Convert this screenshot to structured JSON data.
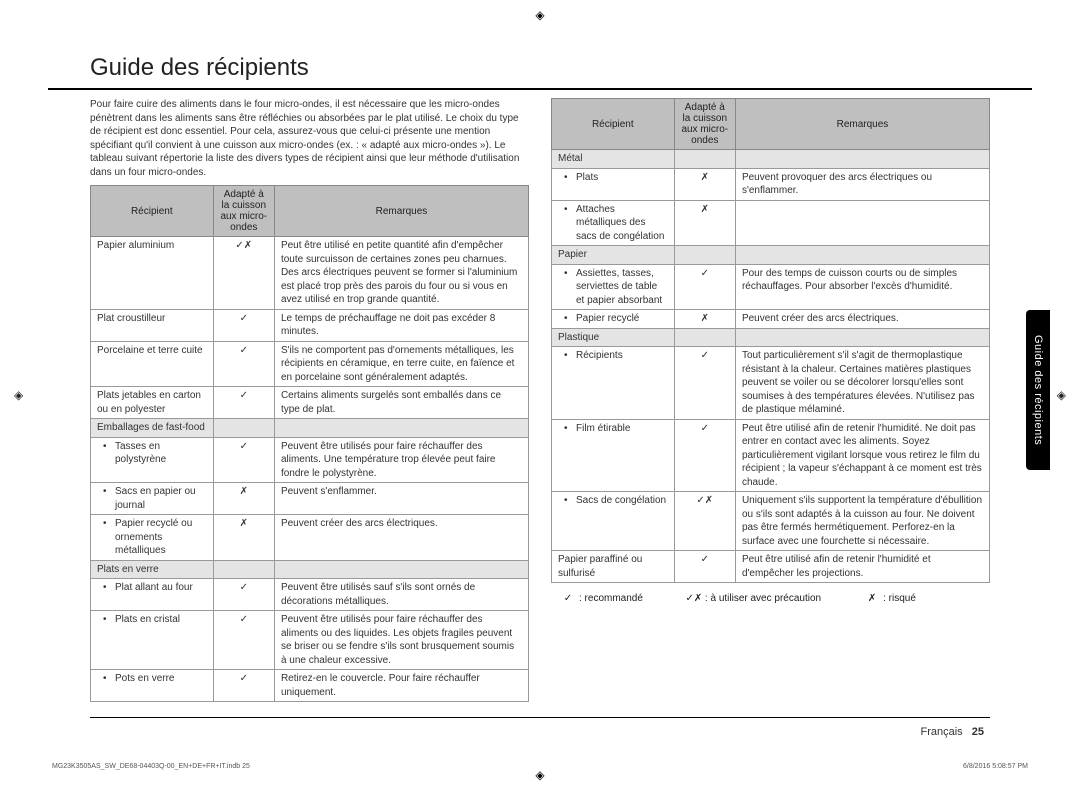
{
  "title": "Guide des récipients",
  "intro": "Pour faire cuire des aliments dans le four micro-ondes, il est nécessaire que les micro-ondes pénètrent dans les aliments sans être réfléchies ou absorbées par le plat utilisé. Le choix du type de récipient est donc essentiel. Pour cela, assurez-vous que celui-ci présente une mention spécifiant qu'il convient à une cuisson aux micro-ondes (ex. : « adapté aux micro-ondes »). Le tableau suivant répertorie la liste des divers types de récipient ainsi que leur méthode d'utilisation dans un four micro-ondes.",
  "headers": {
    "c1": "Récipient",
    "c2": "Adapté à la cuisson aux micro-ondes",
    "c3": "Remarques"
  },
  "left_rows": [
    {
      "type": "row",
      "c1": "Papier aluminium",
      "c2": "✓✗",
      "c3": "Peut être utilisé en petite quantité afin d'empêcher toute surcuisson de certaines zones peu charnues. Des arcs électriques peuvent se former si l'aluminium est placé trop près des parois du four ou si vous en avez utilisé en trop grande quantité."
    },
    {
      "type": "row",
      "c1": "Plat croustilleur",
      "c2": "✓",
      "c3": "Le temps de préchauffage ne doit pas excéder 8 minutes."
    },
    {
      "type": "row",
      "c1": "Porcelaine et terre cuite",
      "c2": "✓",
      "c3": "S'ils ne comportent pas d'ornements métalliques, les récipients en céramique, en terre cuite, en faïence et en porcelaine sont généralement adaptés."
    },
    {
      "type": "row",
      "c1": "Plats jetables en carton ou en polyester",
      "c2": "✓",
      "c3": "Certains aliments surgelés sont emballés dans ce type de plat."
    },
    {
      "type": "cat",
      "c1": "Emballages de fast-food",
      "c2": "",
      "c3": ""
    },
    {
      "type": "sub",
      "c1": "Tasses en polystyrène",
      "c2": "✓",
      "c3": "Peuvent être utilisés pour faire réchauffer des aliments. Une température trop élevée peut faire fondre le polystyrène."
    },
    {
      "type": "sub",
      "c1": "Sacs en papier ou journal",
      "c2": "✗",
      "c3": "Peuvent s'enflammer."
    },
    {
      "type": "sub",
      "c1": "Papier recyclé ou ornements métalliques",
      "c2": "✗",
      "c3": "Peuvent créer des arcs électriques."
    },
    {
      "type": "cat",
      "c1": "Plats en verre",
      "c2": "",
      "c3": ""
    },
    {
      "type": "sub",
      "c1": "Plat allant au four",
      "c2": "✓",
      "c3": "Peuvent être utilisés sauf s'ils sont ornés de décorations métalliques."
    },
    {
      "type": "sub",
      "c1": "Plats en cristal",
      "c2": "✓",
      "c3": "Peuvent être utilisés pour faire réchauffer des aliments ou des liquides. Les objets fragiles peuvent se briser ou se fendre s'ils sont brusquement soumis à une chaleur excessive."
    },
    {
      "type": "sub",
      "c1": "Pots en verre",
      "c2": "✓",
      "c3": "Retirez-en le couvercle. Pour faire réchauffer uniquement."
    }
  ],
  "right_rows": [
    {
      "type": "cat",
      "c1": "Métal",
      "c2": "",
      "c3": ""
    },
    {
      "type": "sub",
      "c1": "Plats",
      "c2": "✗",
      "c3": "Peuvent provoquer des arcs électriques ou s'enflammer."
    },
    {
      "type": "sub",
      "c1": "Attaches métalliques des sacs de congélation",
      "c2": "✗",
      "c3": ""
    },
    {
      "type": "cat",
      "c1": "Papier",
      "c2": "",
      "c3": ""
    },
    {
      "type": "sub",
      "c1": "Assiettes, tasses, serviettes de table et papier absorbant",
      "c2": "✓",
      "c3": "Pour des temps de cuisson courts ou de simples réchauffages. Pour absorber l'excès d'humidité."
    },
    {
      "type": "sub",
      "c1": "Papier recyclé",
      "c2": "✗",
      "c3": "Peuvent créer des arcs électriques."
    },
    {
      "type": "cat",
      "c1": "Plastique",
      "c2": "",
      "c3": ""
    },
    {
      "type": "sub",
      "c1": "Récipients",
      "c2": "✓",
      "c3": "Tout particulièrement s'il s'agit de thermoplastique résistant à la chaleur. Certaines matières plastiques peuvent se voiler ou se décolorer lorsqu'elles sont soumises à des températures élevées. N'utilisez pas de plastique mélaminé."
    },
    {
      "type": "sub",
      "c1": "Film étirable",
      "c2": "✓",
      "c3": "Peut être utilisé afin de retenir l'humidité. Ne doit pas entrer en contact avec les aliments. Soyez particulièrement vigilant lorsque vous retirez le film du récipient ; la vapeur s'échappant à ce moment est très chaude."
    },
    {
      "type": "sub",
      "c1": "Sacs de congélation",
      "c2": "✓✗",
      "c3": "Uniquement s'ils supportent la température d'ébullition ou s'ils sont adaptés à la cuisson au four. Ne doivent pas être fermés hermétiquement. Perforez-en la surface avec une fourchette si nécessaire."
    },
    {
      "type": "row",
      "c1": "Papier paraffiné ou sulfurisé",
      "c2": "✓",
      "c3": "Peut être utilisé afin de retenir l'humidité et d'empêcher les projections."
    }
  ],
  "legend": {
    "ok": {
      "sym": "✓",
      "label": ": recommandé"
    },
    "warn": {
      "sym": "✓✗",
      "label": ": à utiliser avec précaution"
    },
    "no": {
      "sym": "✗",
      "label": ": risqué"
    }
  },
  "side_tab": "Guide des récipients",
  "footer": {
    "lang": "Français",
    "page": "25",
    "meta_left": "MG23K3505AS_SW_DE68-04403Q-00_EN+DE+FR+IT.indb   25",
    "meta_right": "6/8/2016   5:08:57 PM"
  },
  "colors": {
    "header_bg": "#bfbfbf",
    "cat_bg": "#e4e4e4",
    "border": "#999999",
    "rule": "#000000",
    "tab_bg": "#000000",
    "text": "#222222"
  }
}
